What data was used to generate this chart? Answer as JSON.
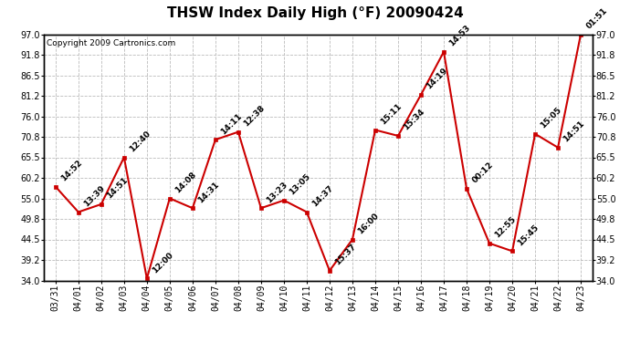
{
  "title": "THSW Index Daily High (°F) 20090424",
  "copyright": "Copyright 2009 Cartronics.com",
  "dates": [
    "03/31",
    "04/01",
    "04/02",
    "04/03",
    "04/04",
    "04/05",
    "04/06",
    "04/07",
    "04/08",
    "04/09",
    "04/10",
    "04/11",
    "04/12",
    "04/13",
    "04/14",
    "04/15",
    "04/16",
    "04/17",
    "04/18",
    "04/19",
    "04/20",
    "04/21",
    "04/22",
    "04/23"
  ],
  "values": [
    58.0,
    51.5,
    53.5,
    65.5,
    34.5,
    55.0,
    52.5,
    70.0,
    72.0,
    52.5,
    54.5,
    51.5,
    36.5,
    44.5,
    72.5,
    71.0,
    81.5,
    92.5,
    57.5,
    43.5,
    41.5,
    71.5,
    68.0,
    97.0
  ],
  "labels": [
    "14:52",
    "13:39",
    "14:51",
    "12:40",
    "12:00",
    "14:08",
    "14:31",
    "14:11",
    "12:38",
    "13:23",
    "13:05",
    "14:37",
    "15:37",
    "16:00",
    "15:11",
    "15:34",
    "14:19",
    "14:53",
    "00:12",
    "12:55",
    "15:45",
    "15:05",
    "14:51",
    "01:51"
  ],
  "ylim": [
    34.0,
    97.0
  ],
  "yticks": [
    34.0,
    39.2,
    44.5,
    49.8,
    55.0,
    60.2,
    65.5,
    70.8,
    76.0,
    81.2,
    86.5,
    91.8,
    97.0
  ],
  "line_color": "#cc0000",
  "marker_color": "#cc0000",
  "bg_color": "#ffffff",
  "grid_color": "#bbbbbb",
  "title_fontsize": 11,
  "label_fontsize": 6.5,
  "tick_fontsize": 7,
  "copyright_fontsize": 6.5
}
